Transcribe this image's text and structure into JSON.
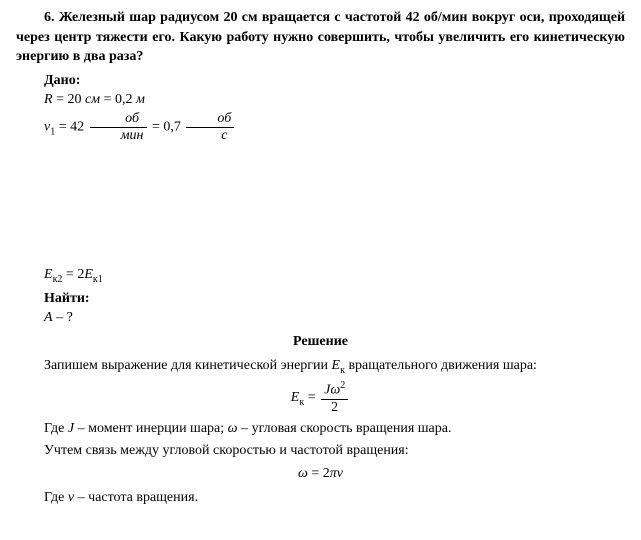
{
  "problem": {
    "number": "6.",
    "statement": "Железный шар радиусом 20 см вращается с частотой 42 об/мин вокруг оси, проходящей через центр тяжести его. Какую работу нужно совершить, чтобы увеличить его кинетическую энергию в два раза?"
  },
  "given": {
    "label": "Дано:",
    "line1_var": "R",
    "line1_eq": " = 20 ",
    "line1_unit1": "см",
    "line1_eq2": " = 0,2 ",
    "line1_unit2": "м",
    "line2_var": "ν",
    "line2_sub": "1",
    "line2_eq": " = 42 ",
    "line2_frac1_num": "об",
    "line2_frac1_den": "мин",
    "line2_eq2": " = 0,7 ",
    "line2_frac2_num": "об",
    "line2_frac2_den": "с",
    "line3_var1": "E",
    "line3_sub1": "к2",
    "line3_eq": " = 2",
    "line3_var2": "E",
    "line3_sub2": "к1"
  },
  "find": {
    "label": "Найти:",
    "var": "A",
    "q": " – ?"
  },
  "solution": {
    "label": "Решение",
    "text1_a": "Запишем выражение для кинетической энергии ",
    "text1_var": "E",
    "text1_sub": "к",
    "text1_b": " вращательного движения шара:",
    "formula1_lhs_var": "E",
    "formula1_lhs_sub": "к",
    "formula1_eq": " = ",
    "formula1_num_J": "J",
    "formula1_num_omega": "ω",
    "formula1_num_sup": "2",
    "formula1_den": "2",
    "text2_a": "Где ",
    "text2_J": "J",
    "text2_b": " – момент инерции шара; ",
    "text2_omega": "ω",
    "text2_c": " – угловая скорость вращения шара.",
    "text3": "Учтем связь между угловой скоростью и частотой вращения:",
    "formula2_omega": "ω",
    "formula2_eq": " = 2",
    "formula2_pi": "π",
    "formula2_nu": "ν",
    "text4_a": "Где ",
    "text4_nu": "ν",
    "text4_b": " – частота вращения."
  }
}
